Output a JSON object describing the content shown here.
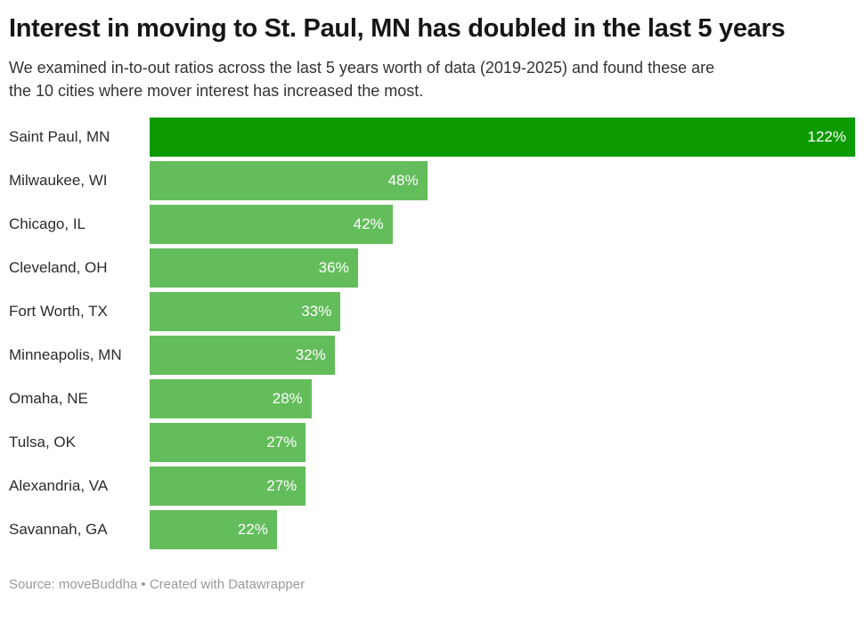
{
  "header": {
    "title": "Interest in moving to St. Paul, MN has doubled in the last 5 years",
    "subtitle": "We examined in-to-out ratios across the last 5 years worth of data (2019-2025) and found these are the 10 cities where mover interest has increased the most."
  },
  "footer": {
    "text": "Source: moveBuddha • Created with Datawrapper"
  },
  "colors": {
    "background": "#ffffff",
    "bar": "#63bd5b",
    "highlight": "#0b9a00",
    "value_label": "#ffffff",
    "category_label": "#2b2b2b",
    "title_text": "#161616",
    "subtitle_text": "#333333",
    "footer_text": "#9a9a9a"
  },
  "chart_data": {
    "type": "bar",
    "orientation": "horizontal",
    "title": "Interest in moving to St. Paul, MN has doubled in the last 5 years",
    "subtitle": "We examined in-to-out ratios across the last 5 years worth of data (2019-2025) and found these are the 10 cities where mover interest has increased the most.",
    "source": "moveBuddha",
    "categories": [
      "Saint Paul, MN",
      "Milwaukee, WI",
      "Chicago, IL",
      "Cleveland, OH",
      "Fort Worth, TX",
      "Minneapolis, MN",
      "Omaha, NE",
      "Tulsa, OK",
      "Alexandria, VA",
      "Savannah, GA"
    ],
    "values": [
      122,
      48,
      42,
      36,
      33,
      32,
      28,
      27,
      27,
      22
    ],
    "value_labels": [
      "122%",
      "48%",
      "42%",
      "36%",
      "33%",
      "32%",
      "28%",
      "27%",
      "27%",
      "22%"
    ],
    "unit": "%",
    "xlabel": "",
    "ylabel": "",
    "xmax": 122,
    "highlight_index": 0,
    "grid": false,
    "legend_position": "none",
    "value_label_position": "inside-end"
  }
}
